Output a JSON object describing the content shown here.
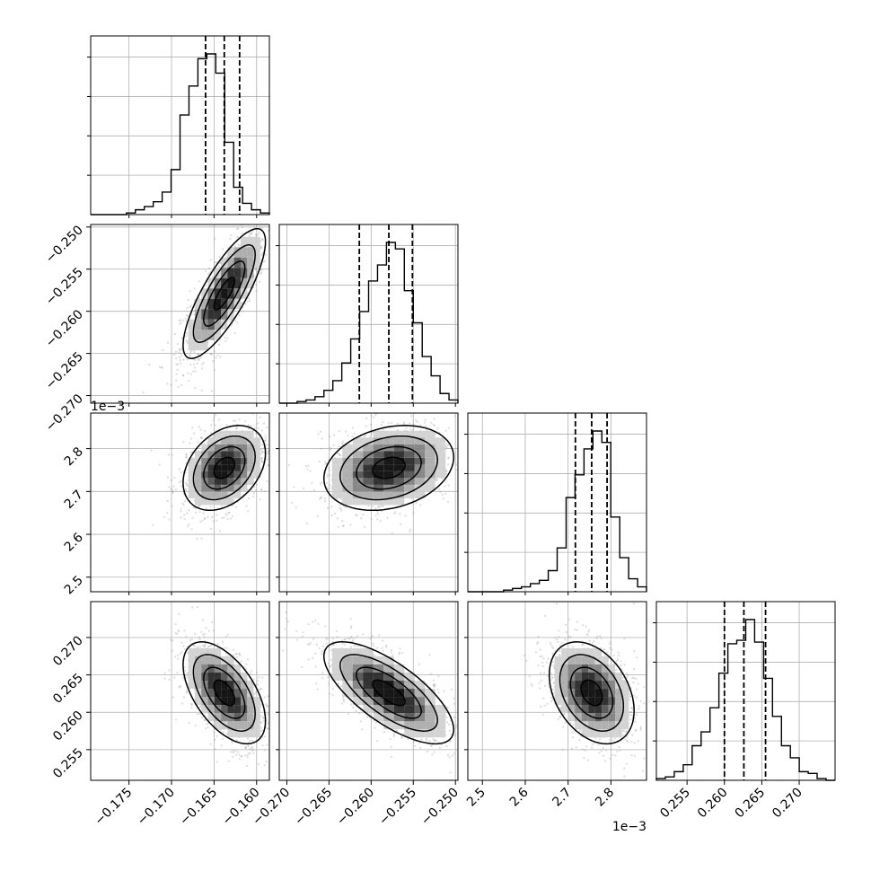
{
  "chart_data": {
    "type": "corner",
    "grid": true,
    "colors": {
      "line": "#000000",
      "grid": "#b0b0b0",
      "density": "#000000",
      "points": "#9a9a9a"
    },
    "parameters": [
      {
        "ticks": [
          -0.175,
          -0.17,
          -0.165,
          -0.16
        ],
        "tick_labels": [
          "−0.175",
          "−0.170",
          "−0.165",
          "−0.160"
        ],
        "offset_text": "",
        "range": [
          -0.1795,
          -0.1585
        ]
      },
      {
        "ticks": [
          -0.27,
          -0.265,
          -0.26,
          -0.255,
          -0.25
        ],
        "tick_labels": [
          "−0.270",
          "−0.265",
          "−0.260",
          "−0.255",
          "−0.250"
        ],
        "offset_text": "",
        "range": [
          -0.2709,
          -0.2497
        ]
      },
      {
        "ticks": [
          2.5,
          2.6,
          2.7,
          2.8
        ],
        "tick_labels": [
          "2.5",
          "2.6",
          "2.7",
          "2.8"
        ],
        "offset_text": "1e−3",
        "range": [
          2.466,
          2.883
        ]
      },
      {
        "ticks": [
          0.255,
          0.26,
          0.265,
          0.27
        ],
        "tick_labels": [
          "0.255",
          "0.260",
          "0.265",
          "0.270"
        ],
        "offset_text": "",
        "range": [
          0.2509,
          0.2748
        ]
      }
    ],
    "histograms": [
      {
        "bins": [
          -0.1795,
          -0.17845,
          -0.1774,
          -0.17635,
          -0.1753,
          -0.17425,
          -0.1732,
          -0.17215,
          -0.1711,
          -0.17005,
          -0.169,
          -0.16795,
          -0.1669,
          -0.16585,
          -0.1648,
          -0.16375,
          -0.1627,
          -0.16165,
          -0.1606,
          -0.15955,
          -0.1585
        ],
        "counts": [
          0,
          0,
          0,
          0,
          0.01,
          0.03,
          0.05,
          0.08,
          0.14,
          0.28,
          0.62,
          0.8,
          0.97,
          1.0,
          0.88,
          0.45,
          0.17,
          0.07,
          0.03,
          0.01
        ],
        "quantiles": [
          -0.166,
          -0.1638,
          -0.162
        ]
      },
      {
        "bins": [
          -0.2709,
          -0.26984,
          -0.26878,
          -0.26772,
          -0.26666,
          -0.2656,
          -0.26454,
          -0.26348,
          -0.26242,
          -0.26136,
          -0.2603,
          -0.25924,
          -0.25818,
          -0.25712,
          -0.25606,
          -0.255,
          -0.25394,
          -0.25288,
          -0.25182,
          -0.25076,
          -0.2497
        ],
        "counts": [
          0,
          0,
          0.01,
          0.02,
          0.04,
          0.08,
          0.14,
          0.25,
          0.4,
          0.57,
          0.76,
          0.86,
          1.0,
          0.96,
          0.7,
          0.5,
          0.29,
          0.17,
          0.06,
          0.02
        ],
        "quantiles": [
          -0.2614,
          -0.2579,
          -0.2551
        ]
      },
      {
        "bins": [
          2.466,
          2.4869,
          2.5077,
          2.5286,
          2.5494,
          2.5703,
          2.5911,
          2.612,
          2.6328,
          2.6537,
          2.6745,
          2.6954,
          2.7162,
          2.7371,
          2.7579,
          2.7788,
          2.7996,
          2.8205,
          2.8413,
          2.8622,
          2.883
        ],
        "counts": [
          0,
          0,
          0,
          0,
          0.01,
          0.02,
          0.03,
          0.05,
          0.07,
          0.13,
          0.27,
          0.58,
          0.72,
          0.88,
          0.99,
          0.92,
          0.46,
          0.21,
          0.08,
          0.03
        ],
        "quantiles": [
          2.717,
          2.755,
          2.791
        ]
      },
      {
        "bins": [
          0.2509,
          0.2521,
          0.25329,
          0.25449,
          0.25568,
          0.25688,
          0.25807,
          0.25926,
          0.26046,
          0.26165,
          0.26285,
          0.26404,
          0.26524,
          0.26643,
          0.26763,
          0.26882,
          0.27001,
          0.27121,
          0.2724,
          0.2736,
          0.2748
        ],
        "counts": [
          0.01,
          0.02,
          0.05,
          0.09,
          0.2,
          0.28,
          0.42,
          0.62,
          0.79,
          0.81,
          0.93,
          0.8,
          0.59,
          0.37,
          0.2,
          0.13,
          0.05,
          0.04,
          0.01,
          0
        ],
        "quantiles": [
          0.26,
          0.2626,
          0.2655
        ]
      }
    ],
    "pairs": [
      {
        "x": 0,
        "y": 1,
        "mean": [
          -0.1638,
          -0.2579
        ],
        "sd": [
          0.0022,
          0.0035
        ],
        "rho": 0.8
      },
      {
        "x": 0,
        "y": 2,
        "mean": [
          -0.1638,
          2.755
        ],
        "sd": [
          0.0022,
          0.045
        ],
        "rho": 0.35
      },
      {
        "x": 1,
        "y": 2,
        "mean": [
          -0.2579,
          2.755
        ],
        "sd": [
          0.0035,
          0.045
        ],
        "rho": 0.25
      },
      {
        "x": 0,
        "y": 3,
        "mean": [
          -0.1638,
          0.2626
        ],
        "sd": [
          0.0022,
          0.0031
        ],
        "rho": -0.55
      },
      {
        "x": 1,
        "y": 3,
        "mean": [
          -0.2579,
          0.2626
        ],
        "sd": [
          0.0035,
          0.0031
        ],
        "rho": -0.72
      },
      {
        "x": 2,
        "y": 3,
        "mean": [
          2.755,
          0.2626
        ],
        "sd": [
          0.045,
          0.0031
        ],
        "rho": -0.35
      }
    ]
  }
}
